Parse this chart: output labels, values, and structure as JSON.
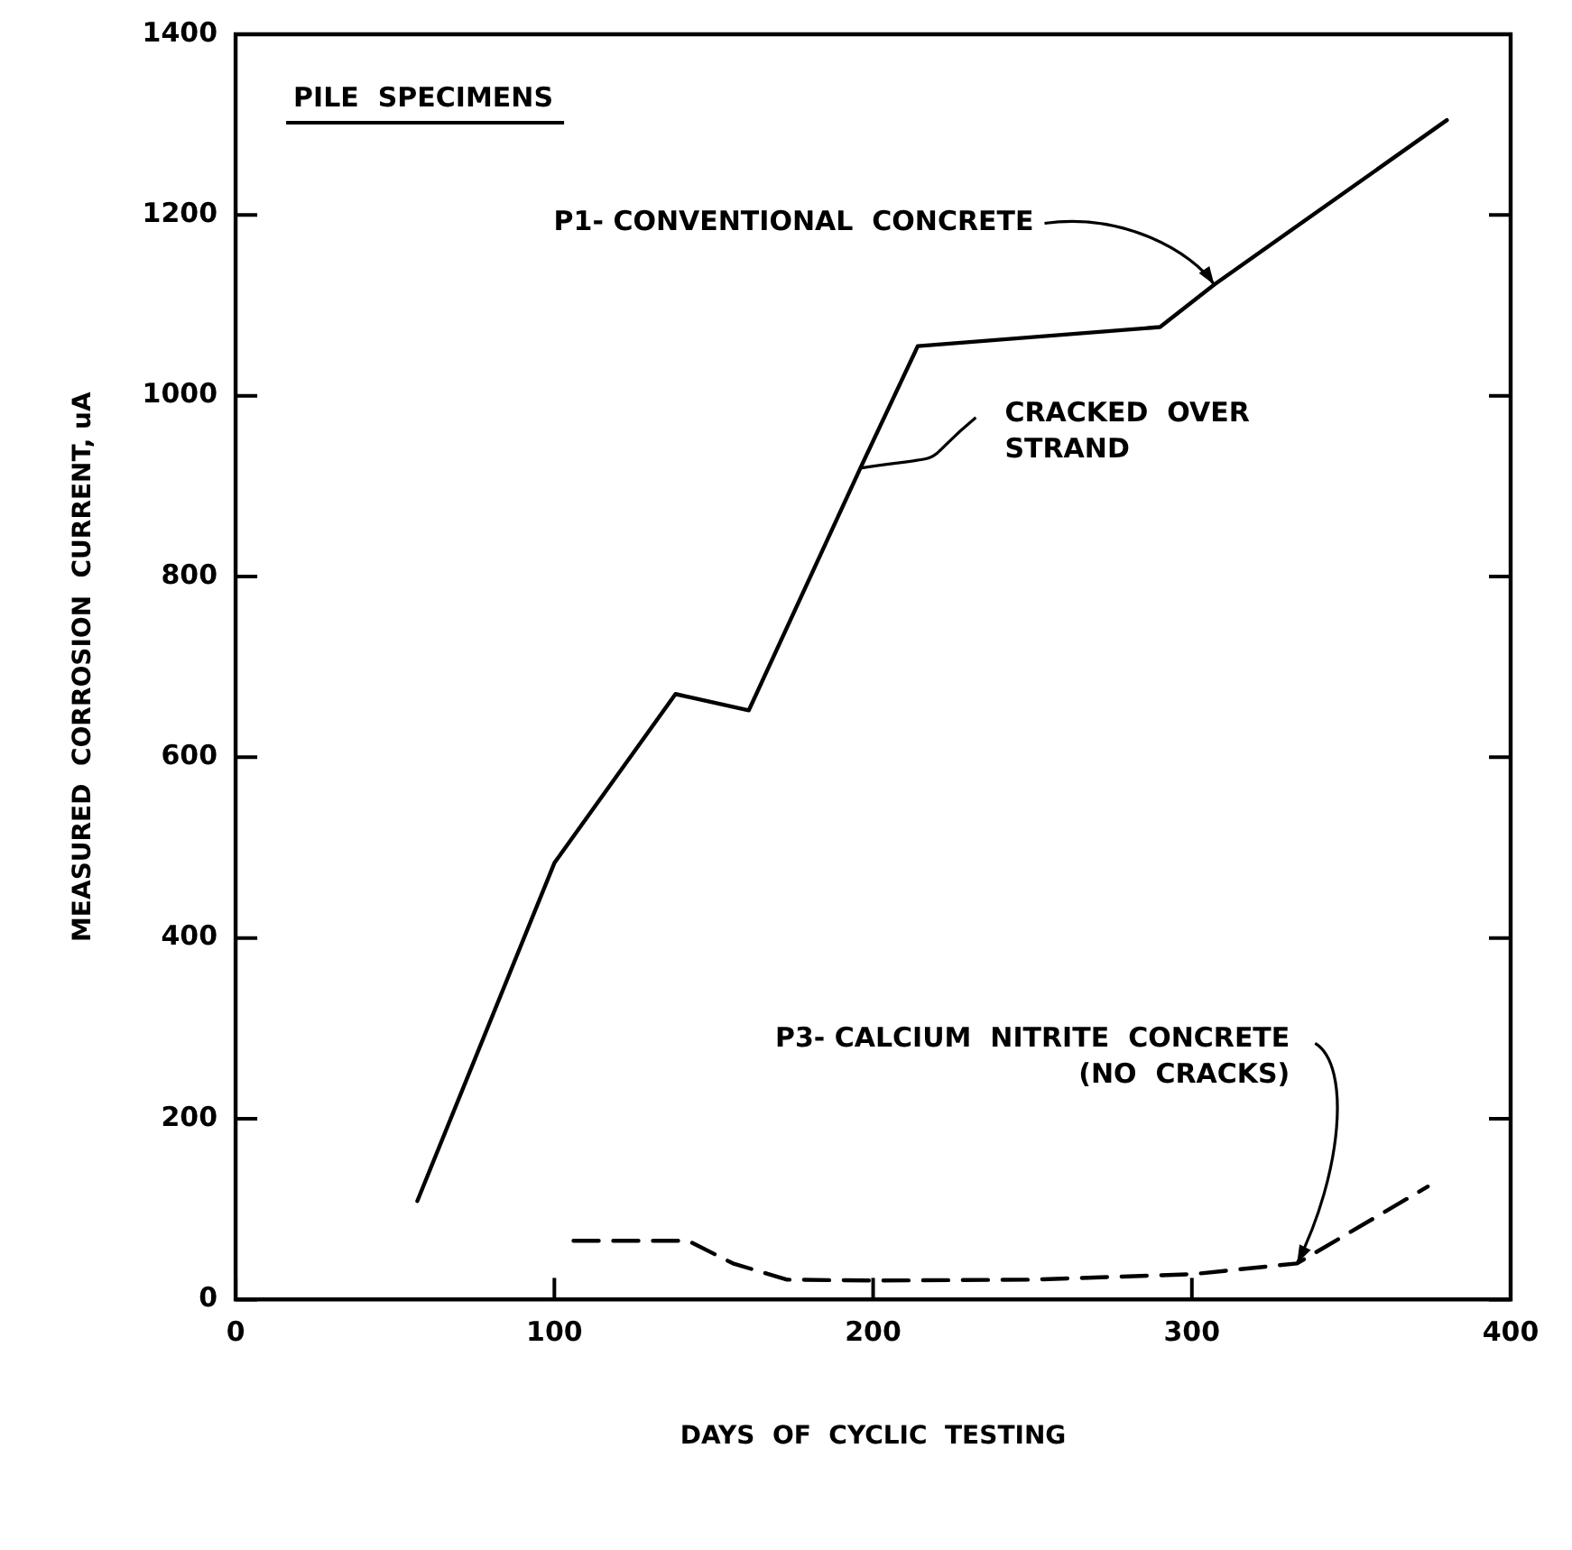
{
  "chart_data": {
    "type": "line",
    "xlabel": "DAYS  OF  CYCLIC  TESTING",
    "ylabel": "MEASURED  CORROSION  CURRENT, uA",
    "xlim": [
      0,
      400
    ],
    "xticks": [
      0,
      100,
      200,
      300,
      400
    ],
    "ylim": [
      0,
      1400
    ],
    "yticks": [
      0,
      200,
      400,
      600,
      800,
      1000,
      1200,
      1400
    ],
    "grid": false,
    "legend": false,
    "marker": "none",
    "series": [
      {
        "color": "#000000",
        "line_style": "solid",
        "x": [
          57,
          100,
          138,
          161,
          196,
          214,
          290,
          307,
          380
        ],
        "values": [
          109,
          483,
          670,
          652,
          920,
          1055,
          1076,
          1123,
          1305
        ]
      },
      {
        "color": "#000000",
        "line_style": "dashed",
        "x": [
          106,
          142,
          156,
          173,
          200,
          250,
          300,
          333,
          374
        ],
        "values": [
          65,
          65,
          40,
          22,
          21,
          22,
          28,
          40,
          125
        ]
      }
    ],
    "annotations": [
      "PILE  SPECIMENS",
      {
        "text": "P1- CONVENTIONAL  CONCRETE",
        "x": 307,
        "y": 1123
      },
      {
        "text": "CRACKED  OVER\nSTRAND",
        "x": 196,
        "y": 920
      },
      {
        "text": "P3- CALCIUM  NITRITE  CONCRETE\n(NO  CRACKS)",
        "x": 333,
        "y": 40
      }
    ]
  }
}
